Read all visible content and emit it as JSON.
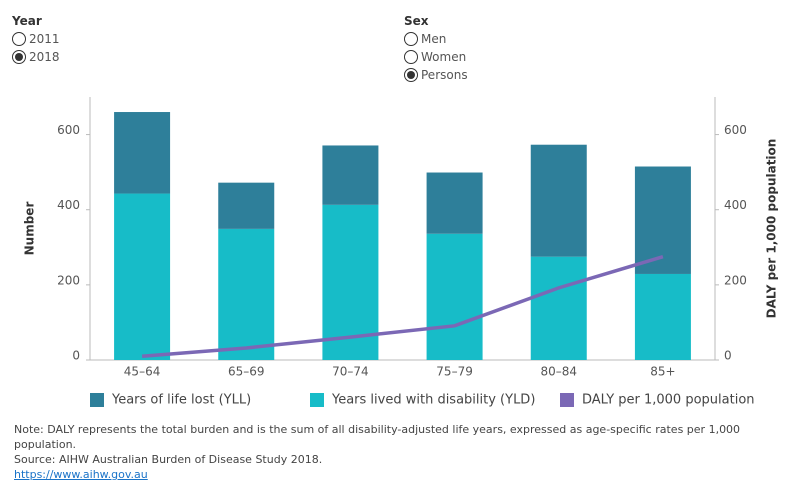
{
  "controls": {
    "year": {
      "label": "Year",
      "options": [
        "2011",
        "2018"
      ],
      "selected": 1
    },
    "sex": {
      "label": "Sex",
      "options": [
        "Men",
        "Women",
        "Persons"
      ],
      "selected": 2
    }
  },
  "chart_data": {
    "type": "bar",
    "categories": [
      "45–64",
      "65–69",
      "70–74",
      "75–79",
      "80–84",
      "85+"
    ],
    "series": [
      {
        "name": "Years of life lost (YLL)",
        "type": "bar",
        "color": "#2e7f9a",
        "values": [
          217,
          123,
          158,
          163,
          298,
          286
        ]
      },
      {
        "name": "Years lived with disability (YLD)",
        "type": "bar",
        "color": "#17bcc8",
        "values": [
          443,
          349,
          413,
          336,
          275,
          229
        ]
      },
      {
        "name": "DALY per 1,000 population",
        "type": "line",
        "axis": "y2",
        "color": "#7b68b5",
        "values": [
          10,
          32,
          61,
          91,
          192,
          275
        ]
      }
    ],
    "y_label": "Number",
    "y2_label": "DALY per 1,000 population",
    "ylim": [
      0,
      700
    ],
    "yticks": [
      0,
      200,
      400,
      600
    ],
    "y2lim": [
      0,
      700
    ],
    "y2ticks": [
      0,
      200,
      400,
      600
    ],
    "legend": "bottom"
  },
  "notes": {
    "note": "Note: DALY represents the total burden and is the sum of all disability-adjusted life years, expressed as age-specific rates per 1,000 population.",
    "source": "Source: AIHW Australian Burden of Disease Study 2018.",
    "link": "https://www.aihw.gov.au"
  }
}
